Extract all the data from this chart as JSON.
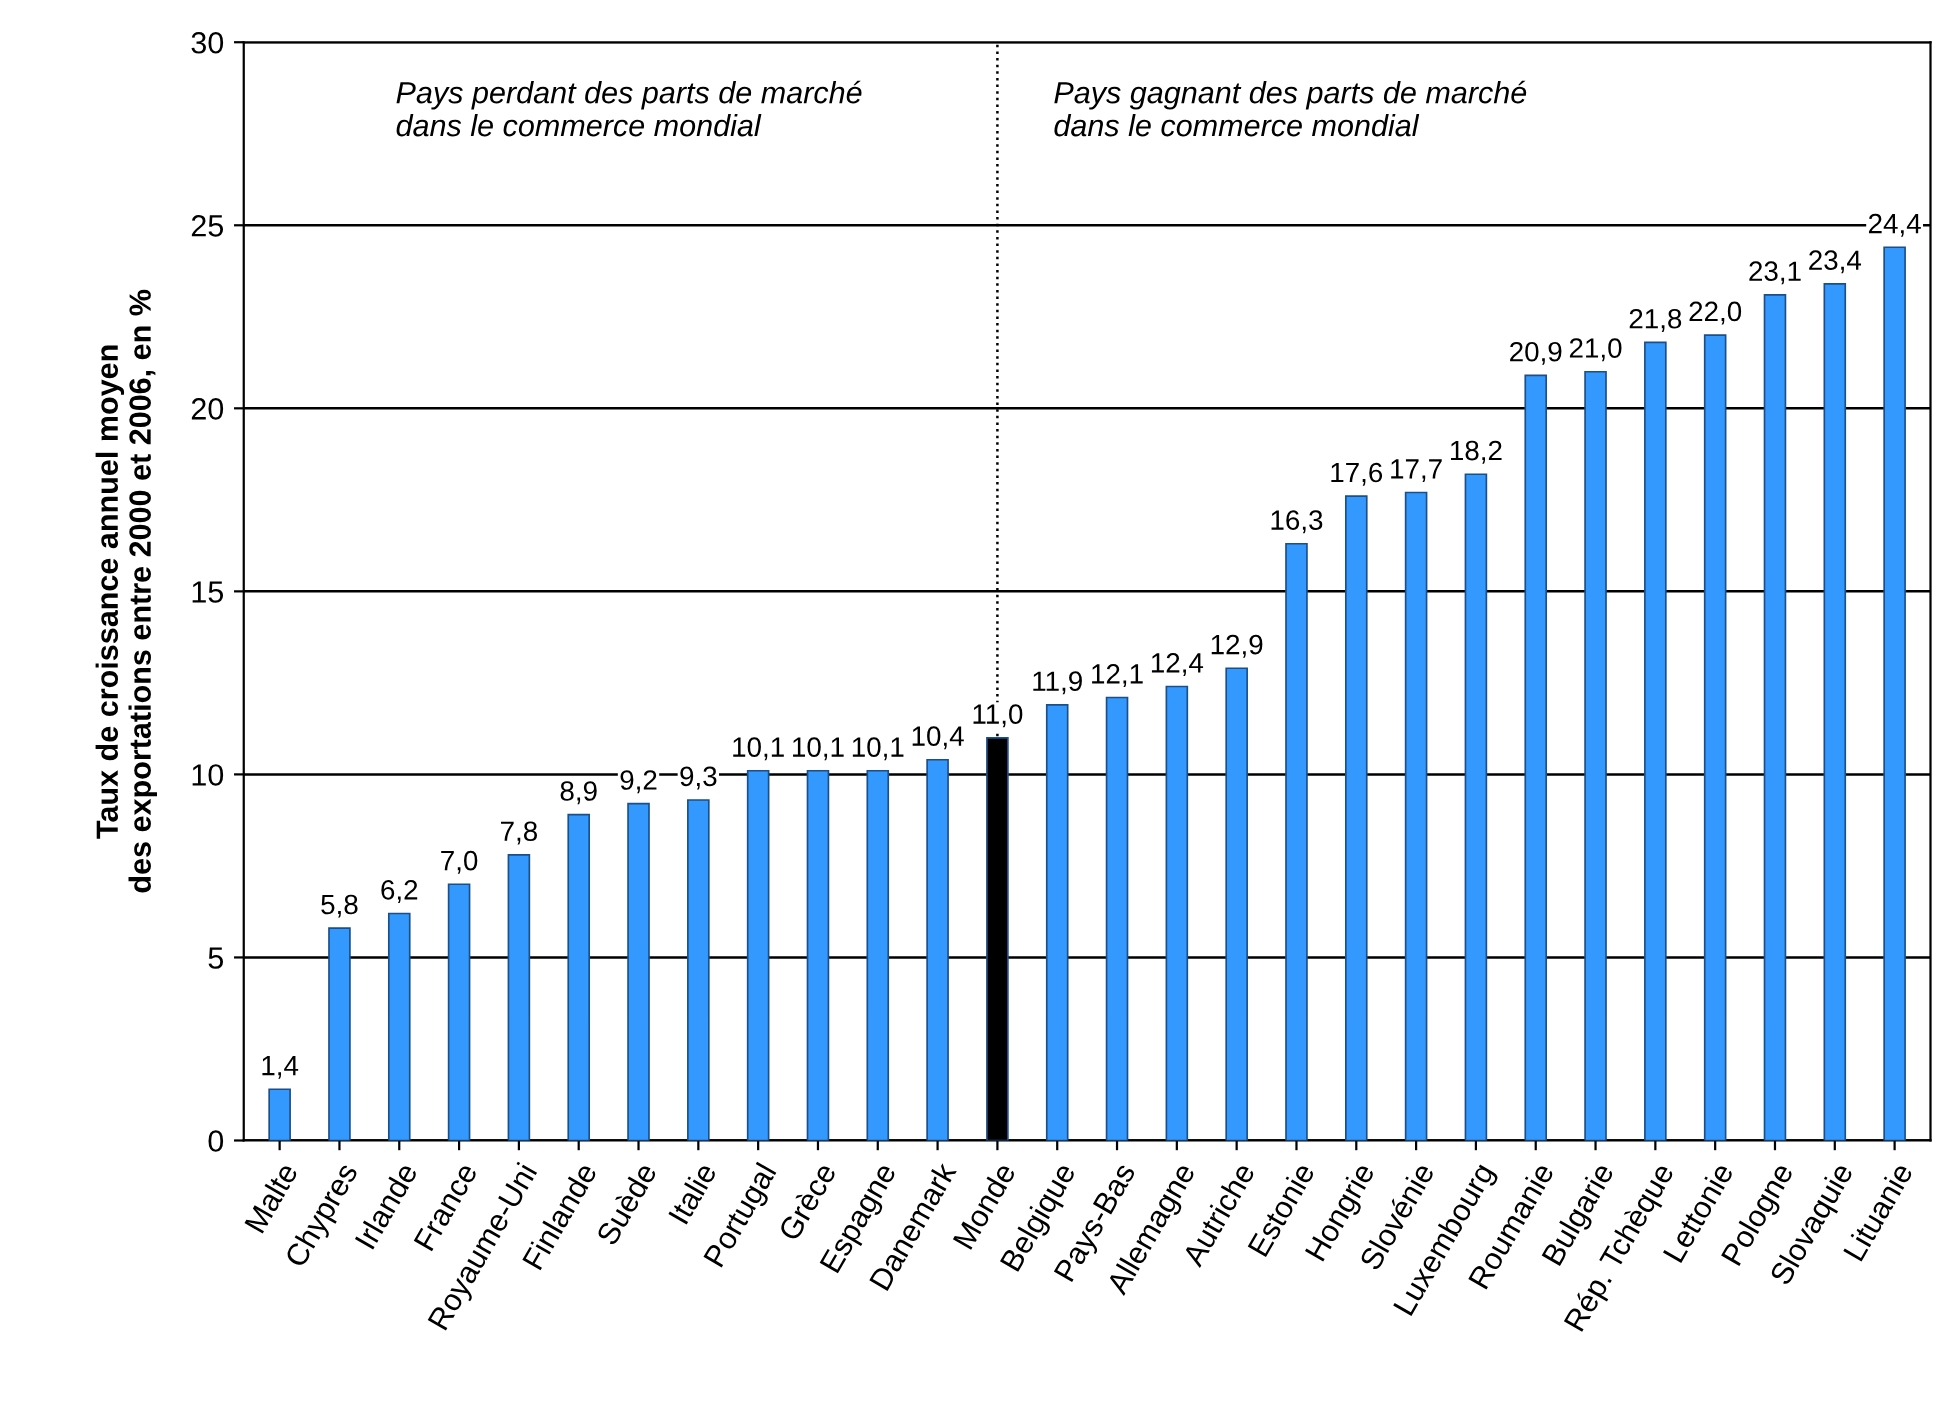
{
  "chart_data": {
    "type": "bar",
    "ylabel": "Taux de croissance annuel moyen\ndes exportations entre 2000 et 2006, en %",
    "categories": [
      "Malte",
      "Chypres",
      "Irlande",
      "France",
      "Royaume-Uni",
      "Finlande",
      "Suède",
      "Italie",
      "Portugal",
      "Grèce",
      "Espagne",
      "Danemark",
      "Monde",
      "Belgique",
      "Pays-Bas",
      "Allemagne",
      "Autriche",
      "Estonie",
      "Hongrie",
      "Slovénie",
      "Luxembourg",
      "Roumanie",
      "Bulgarie",
      "Rép. Tchèque",
      "Lettonie",
      "Pologne",
      "Slovaquie",
      "Lituanie"
    ],
    "values": [
      1.4,
      5.8,
      6.2,
      7.0,
      7.8,
      8.9,
      9.2,
      9.3,
      10.1,
      10.1,
      10.1,
      10.4,
      11.0,
      11.9,
      12.1,
      12.4,
      12.9,
      16.3,
      17.6,
      17.7,
      18.2,
      20.9,
      21.0,
      21.8,
      22.0,
      23.1,
      23.4,
      24.4
    ],
    "value_labels": [
      "1,4",
      "5,8",
      "6,2",
      "7,0",
      "7,8",
      "8,9",
      "9,2",
      "9,3",
      "10,1",
      "10,1",
      "10,1",
      "10,4",
      "11,0",
      "11,9",
      "12,1",
      "12,4",
      "12,9",
      "16,3",
      "17,6",
      "17,7",
      "18,2",
      "20,9",
      "21,0",
      "21,8",
      "22,0",
      "23,1",
      "23,4",
      "24,4"
    ],
    "colors": [
      "#3399ff",
      "#3399ff",
      "#3399ff",
      "#3399ff",
      "#3399ff",
      "#3399ff",
      "#3399ff",
      "#3399ff",
      "#3399ff",
      "#3399ff",
      "#3399ff",
      "#3399ff",
      "#000000",
      "#3399ff",
      "#3399ff",
      "#3399ff",
      "#3399ff",
      "#3399ff",
      "#3399ff",
      "#3399ff",
      "#3399ff",
      "#3399ff",
      "#3399ff",
      "#3399ff",
      "#3399ff",
      "#3399ff",
      "#3399ff",
      "#3399ff"
    ],
    "ylim": [
      0,
      30
    ],
    "yticks": [
      0,
      5,
      10,
      15,
      20,
      25,
      30
    ],
    "grid": "y",
    "ref_lines": [
      {
        "axis": "x",
        "value": "Monde",
        "line_style": "dotted",
        "color": "#000000"
      }
    ],
    "annotations": [
      "Pays perdant des parts de marché\ndans le commerce mondial",
      "Pays gagnant des parts de marché\ndans le commerce mondial"
    ]
  }
}
